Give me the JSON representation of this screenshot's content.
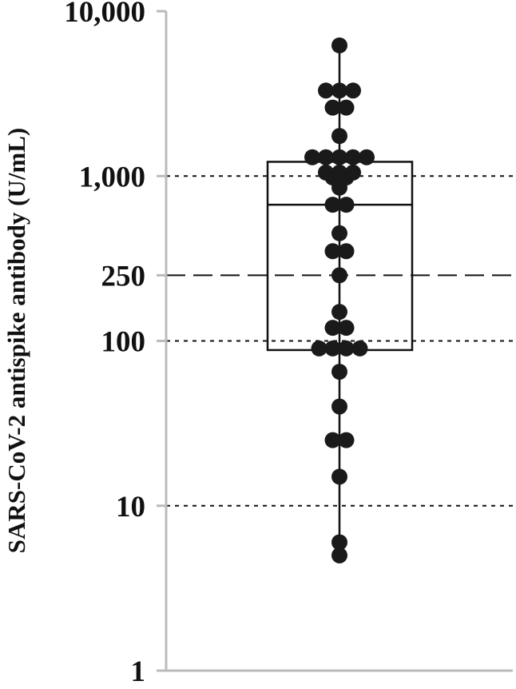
{
  "chart_data": {
    "type": "scatter",
    "subtype": "box-and-dot-plot",
    "ylabel": "SARS-CoV-2 antispike antibody (U/mL)",
    "y_scale": "log",
    "ylim": [
      1,
      10000
    ],
    "y_ticks": [
      {
        "value": 1,
        "label": "1"
      },
      {
        "value": 10,
        "label": "10"
      },
      {
        "value": 100,
        "label": "100"
      },
      {
        "value": 250,
        "label": "250"
      },
      {
        "value": 1000,
        "label": "1,000"
      },
      {
        "value": 10000,
        "label": "10,000"
      }
    ],
    "reference_lines": [
      {
        "value": 10,
        "style": "dotted"
      },
      {
        "value": 100,
        "style": "dotted"
      },
      {
        "value": 250,
        "style": "dashed"
      },
      {
        "value": 1000,
        "style": "dotted"
      }
    ],
    "box": {
      "q1": 88,
      "median": 670,
      "q3": 1220,
      "whisker_low": 5,
      "whisker_high": 6200
    },
    "points": [
      6200,
      3300,
      3300,
      3300,
      2600,
      2600,
      1750,
      1300,
      1300,
      1300,
      1300,
      1300,
      1050,
      1050,
      1050,
      980,
      980,
      850,
      670,
      670,
      450,
      350,
      350,
      250,
      150,
      120,
      120,
      90,
      90,
      90,
      90,
      65,
      40,
      25,
      25,
      15,
      6,
      5
    ],
    "colors": {
      "points": "#1a1a1a",
      "box": "#111111",
      "axis": "#bbbbbb",
      "gridlines": "#111111"
    }
  }
}
